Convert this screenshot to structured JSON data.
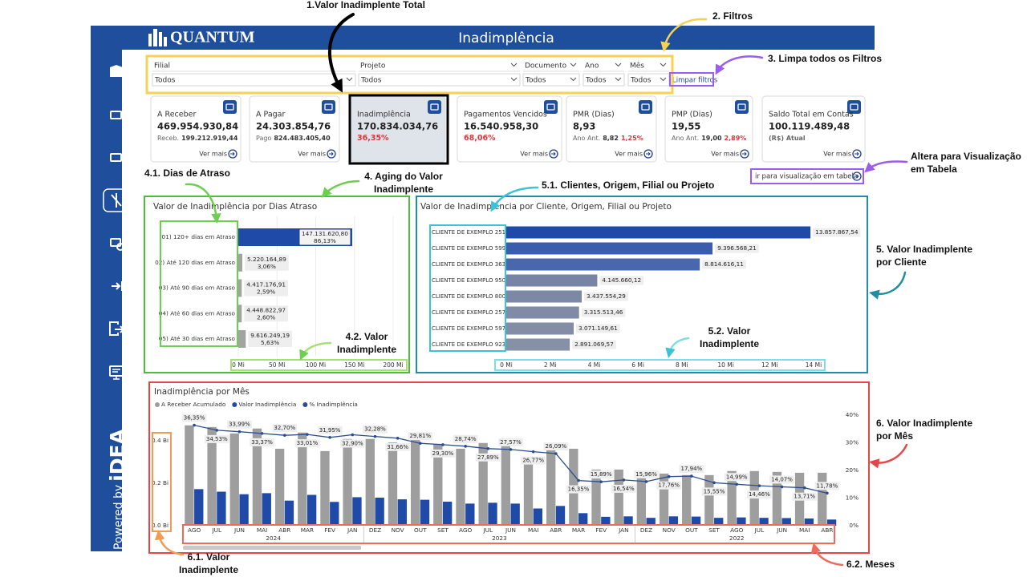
{
  "header": {
    "logo": "QUANTUM",
    "title": "Inadimplência",
    "powered": "Powered by",
    "brand": "iDEA"
  },
  "filters": [
    {
      "label": "Filial",
      "value": "Todos"
    },
    {
      "label": "Projeto",
      "value": "Todos"
    },
    {
      "label": "Documento",
      "value": "Todos"
    },
    {
      "label": "Ano",
      "value": "Todos"
    },
    {
      "label": "Mês",
      "value": "Todos"
    }
  ],
  "clear_filters": "Limpar filtros",
  "kpis": [
    {
      "title": "A Receber",
      "value": "469.954.930,84",
      "sub_label": "Receb.",
      "sub_value": "199.212.919,44",
      "link": "Ver mais"
    },
    {
      "title": "A Pagar",
      "value": "24.303.854,76",
      "sub_label": "Pago",
      "sub_value": "824.483.405,40",
      "link": "Ver mais"
    },
    {
      "title": "Inadimplência",
      "value": "170.834.034,76",
      "sub_value": "36,35%"
    },
    {
      "title": "Pagamentos Vencidos",
      "value": "16.540.958,30",
      "sub_value": "68,06%",
      "link": "Ver mais"
    },
    {
      "title": "PMR (Dias)",
      "value": "8,93",
      "sub_label": "Ano Ant.",
      "sub_value": "8,82",
      "change": "1,25%",
      "link": "Ver mais"
    },
    {
      "title": "PMP (Dias)",
      "value": "19,55",
      "sub_label": "Ano Ant.",
      "sub_value": "19,00",
      "change": "2,89%",
      "link": "Ver mais"
    },
    {
      "title": "Saldo Total em Contas",
      "value": "100.119.489,48",
      "sub_label": "(R$) Atual",
      "link": "Ver mais"
    }
  ],
  "table_link": "ir para visualização em tabela",
  "annotations": [
    [
      "1.Valor Inadimplente Total"
    ],
    [
      "2. Filtros"
    ],
    [
      "3. Limpa todos os Filtros"
    ],
    [
      "Altera para Visualização",
      "em Tabela"
    ],
    [
      "4.1. Dias de Atraso"
    ],
    [
      "4. Aging do Valor",
      "Inadimplente"
    ],
    [
      "5.1. Clientes, Origem, Filial ou Projeto"
    ],
    [
      "5. Valor Inadimplente",
      "por Cliente"
    ],
    [
      "4.2. Valor",
      "Inadimplente"
    ],
    [
      "5.2. Valor",
      "Inadimplente"
    ],
    [
      "6. Valor Inadimplente",
      "por Mês"
    ],
    [
      "6.1. Valor",
      "Inadimplente"
    ],
    [
      "6.2. Meses"
    ]
  ],
  "chart_data": [
    {
      "type": "bar",
      "orientation": "horizontal",
      "title": "Valor de Inadimplência por Dias Atraso",
      "categories": [
        "01) 120+ dias em Atraso",
        "02) Até 120 dias em Atraso",
        "03) Até 90 dias em Atraso",
        "04) Até 60 dias em Atraso",
        "05) Até 30 dias em Atraso"
      ],
      "values": [
        147.1316208,
        5.22016489,
        4.41717691,
        4.44882297,
        9.61624919
      ],
      "value_labels": [
        "147.131.620,80",
        "5.220.164,89",
        "4.417.176,91",
        "4.448.822,97",
        "9.616.249,19"
      ],
      "share_labels": [
        "86,13%",
        "3,06%",
        "2,59%",
        "2,60%",
        "5,63%"
      ],
      "colors": [
        "#1f4aa8",
        "#a3a3a3",
        "#a3a3a3",
        "#a3a3a3",
        "#a3a3a3"
      ],
      "xlim": [
        0,
        200
      ],
      "xticks": [
        {
          "value": 0,
          "label": "0 Mi"
        },
        {
          "value": 50,
          "label": "50 Mi"
        },
        {
          "value": 100,
          "label": "100 Mi"
        },
        {
          "value": 150,
          "label": "150 Mi"
        },
        {
          "value": 200,
          "label": "200 Mi"
        }
      ],
      "grid": true
    },
    {
      "type": "bar",
      "orientation": "horizontal",
      "title": "Valor de Inadimplência por Cliente, Origem, Filial ou Projeto",
      "categories": [
        "CLIENTE DE EXEMPLO 251",
        "CLIENTE DE EXEMPLO 599",
        "CLIENTE DE EXEMPLO 363",
        "CLIENTE DE EXEMPLO 950",
        "CLIENTE DE EXEMPLO 800",
        "CLIENTE DE EXEMPLO 257",
        "CLIENTE DE EXEMPLO 597",
        "CLIENTE DE EXEMPLO 923"
      ],
      "values": [
        13.85786754,
        9.39656821,
        8.81461611,
        4.14566012,
        3.43755429,
        3.31551346,
        3.07114961,
        2.89106957
      ],
      "value_labels": [
        "13.857.867,54",
        "9.396.568,21",
        "8.814.616,11",
        "4.145.660,12",
        "3.437.554,29",
        "3.315.513,46",
        "3.071.149,61",
        "2.891.069,57"
      ],
      "colors": [
        "#1f4aa8",
        "#3b5dae",
        "#4a67ad",
        "#7884a6",
        "#7d88a6",
        "#808ba6",
        "#838da6",
        "#8690a6"
      ],
      "xlim": [
        0,
        14
      ],
      "xticks": [
        {
          "value": 0,
          "label": "0 Mi"
        },
        {
          "value": 2,
          "label": "2 Mi"
        },
        {
          "value": 4,
          "label": "4 Mi"
        },
        {
          "value": 6,
          "label": "6 Mi"
        },
        {
          "value": 8,
          "label": "8 Mi"
        },
        {
          "value": 10,
          "label": "10 Mi"
        },
        {
          "value": 12,
          "label": "12 Mi"
        },
        {
          "value": 14,
          "label": "14 Mi"
        }
      ],
      "grid": false
    },
    {
      "type": "combo",
      "title": "Inadimplência por Mês",
      "category_groups": [
        {
          "name": "2024",
          "categories": [
            "AGO",
            "JUL",
            "JUN",
            "MAI",
            "ABR",
            "MAR",
            "FEV",
            "JAN"
          ]
        },
        {
          "name": "2023",
          "categories": [
            "DEZ",
            "NOV",
            "OUT",
            "SET",
            "AGO",
            "JUL",
            "JUN",
            "MAI",
            "ABR",
            "MAR",
            "FEV",
            "JAN"
          ]
        },
        {
          "name": "2022",
          "categories": [
            "DEZ",
            "NOV",
            "OUT",
            "SET",
            "AGO",
            "JUL",
            "JUN",
            "MAI",
            "ABR"
          ]
        }
      ],
      "series": [
        {
          "name": "A Receber Acumulado",
          "type": "bar",
          "color": "#9e9e9e",
          "values": [
            0.472,
            0.464,
            0.434,
            0.457,
            0.362,
            0.438,
            0.351,
            0.408,
            0.408,
            0.392,
            0.408,
            0.385,
            0.362,
            0.389,
            0.377,
            0.302,
            0.358,
            0.362,
            0.264,
            0.264,
            0.234,
            0.245,
            0.238,
            0.238,
            0.257,
            0.257,
            0.253,
            0.249,
            0.249
          ]
        },
        {
          "name": "Valor Inadimplência",
          "type": "bar",
          "color": "#1f4aa8",
          "values": [
            0.172,
            0.16,
            0.148,
            0.153,
            0.118,
            0.145,
            0.112,
            0.134,
            0.132,
            0.124,
            0.122,
            0.113,
            0.104,
            0.108,
            0.104,
            0.081,
            0.093,
            0.059,
            0.042,
            0.044,
            0.037,
            0.044,
            0.043,
            0.037,
            0.039,
            0.037,
            0.036,
            0.034,
            0.029
          ]
        },
        {
          "name": "% Inadimplência",
          "type": "line",
          "axis": "y2",
          "color": "#2a4d8f",
          "values": [
            36.35,
            34.53,
            33.99,
            33.37,
            32.7,
            33.01,
            31.95,
            32.9,
            32.28,
            31.66,
            29.81,
            29.3,
            28.74,
            27.89,
            27.57,
            26.77,
            26.09,
            16.35,
            15.89,
            16.54,
            15.96,
            17.76,
            17.94,
            15.55,
            14.99,
            14.46,
            14.07,
            13.71,
            11.78
          ],
          "value_labels": [
            "36,35%",
            "34,53%",
            "33,99%",
            "33,37%",
            "32,70%",
            "33,01%",
            "31,95%",
            "32,90%",
            "32,28%",
            "31,66%",
            "29,81%",
            "29,30%",
            "28,74%",
            "27,89%",
            "27,57%",
            "26,77%",
            "26,09%",
            "16,35%",
            "15,89%",
            "16,54%",
            "15,96%",
            "17,76%",
            "17,94%",
            "15,55%",
            "14,99%",
            "14,46%",
            "14,07%",
            "13,71%",
            "11,78%"
          ]
        }
      ],
      "ylim": [
        0,
        0.52
      ],
      "yticks": [
        {
          "value": 0,
          "label": "0.0 Bi"
        },
        {
          "value": 0.2,
          "label": "0.2 Bi"
        },
        {
          "value": 0.4,
          "label": "0.4 Bi"
        }
      ],
      "y2lim": [
        0,
        40
      ],
      "y2ticks": [
        {
          "value": 0,
          "label": "0%"
        },
        {
          "value": 10,
          "label": "10%"
        },
        {
          "value": 20,
          "label": "20%"
        },
        {
          "value": 30,
          "label": "30%"
        },
        {
          "value": 40,
          "label": "40%"
        }
      ],
      "grid": false
    }
  ]
}
